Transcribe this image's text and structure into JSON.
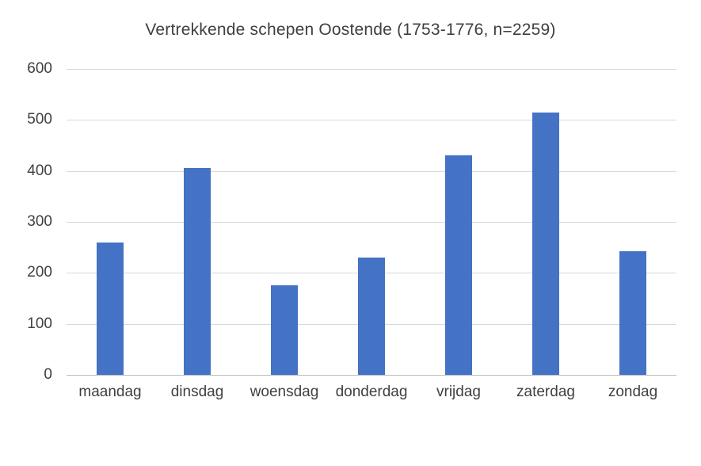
{
  "chart_data": {
    "type": "bar",
    "title": "Vertrekkende schepen Oostende (1753-1776, n=2259)",
    "categories": [
      "maandag",
      "dinsdag",
      "woensdag",
      "donderdag",
      "vrijdag",
      "zaterdag",
      "zondag"
    ],
    "values": [
      260,
      406,
      176,
      230,
      430,
      514,
      243
    ],
    "total_n": 2259,
    "xlabel": "",
    "ylabel": "",
    "ylim": [
      0,
      600
    ],
    "ytick_step": 100,
    "ytick_labels": [
      "0",
      "100",
      "200",
      "300",
      "400",
      "500",
      "600"
    ],
    "grid": true,
    "legend_position": "none",
    "colors": {
      "bar": "#4472c4",
      "gridline": "#d9d9d9",
      "axis_line": "#bfbfbf",
      "text": "#404040",
      "background": "#ffffff"
    }
  }
}
